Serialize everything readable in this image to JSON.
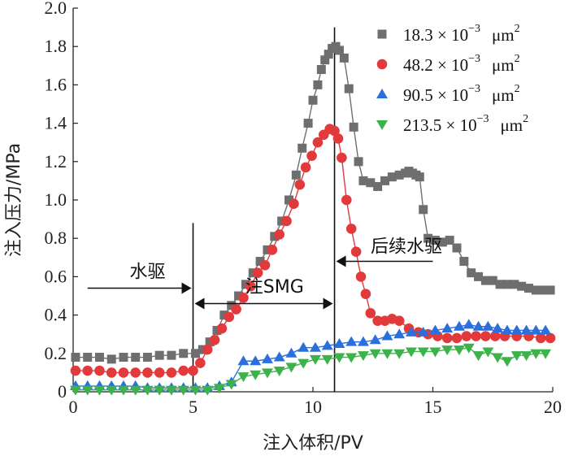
{
  "chart_data": {
    "type": "line",
    "xlabel": "注入体积/PV",
    "ylabel": "注入压力/MPa",
    "xlim": [
      0,
      20
    ],
    "ylim": [
      0,
      2.0
    ],
    "x_ticks": [
      "0",
      "5",
      "10",
      "15",
      "20"
    ],
    "y_ticks": [
      "0",
      "0.2",
      "0.4",
      "0.6",
      "0.8",
      "1.0",
      "1.2",
      "1.4",
      "1.6",
      "1.8",
      "2.0"
    ],
    "legend_position": "top-right",
    "series": [
      {
        "name": "18.3×10⁻³ μm²",
        "legend": {
          "base": "18.3 × 10",
          "exp": "−3",
          "unit": "μm",
          "unit_exp": "2"
        },
        "marker": "square",
        "color": "#6e6e6e",
        "x": [
          0.1,
          0.6,
          1.1,
          1.6,
          2.1,
          2.6,
          3.1,
          3.6,
          4.1,
          4.6,
          5.1,
          5.4,
          5.7,
          6.0,
          6.3,
          6.6,
          6.9,
          7.2,
          7.5,
          7.8,
          8.1,
          8.4,
          8.7,
          9.0,
          9.3,
          9.55,
          9.8,
          10.0,
          10.2,
          10.35,
          10.5,
          10.65,
          10.8,
          10.95,
          11.1,
          11.3,
          11.5,
          11.7,
          11.9,
          12.1,
          12.4,
          12.7,
          13.0,
          13.3,
          13.6,
          13.85,
          14.0,
          14.15,
          14.3,
          14.45,
          14.6,
          14.8,
          15.1,
          15.4,
          15.7,
          16.0,
          16.3,
          16.6,
          16.9,
          17.2,
          17.5,
          17.8,
          18.1,
          18.4,
          18.7,
          19.0,
          19.3,
          19.6,
          19.9
        ],
        "y": [
          0.18,
          0.18,
          0.18,
          0.17,
          0.18,
          0.18,
          0.18,
          0.19,
          0.19,
          0.2,
          0.2,
          0.22,
          0.26,
          0.32,
          0.4,
          0.45,
          0.5,
          0.56,
          0.62,
          0.68,
          0.74,
          0.81,
          0.89,
          1.0,
          1.13,
          1.27,
          1.4,
          1.52,
          1.6,
          1.68,
          1.73,
          1.76,
          1.79,
          1.8,
          1.78,
          1.74,
          1.58,
          1.38,
          1.2,
          1.1,
          1.09,
          1.07,
          1.1,
          1.12,
          1.13,
          1.14,
          1.15,
          1.14,
          1.13,
          1.12,
          0.95,
          0.8,
          0.79,
          0.78,
          0.79,
          0.75,
          0.68,
          0.62,
          0.6,
          0.58,
          0.58,
          0.56,
          0.56,
          0.56,
          0.55,
          0.54,
          0.53,
          0.53,
          0.53
        ]
      },
      {
        "name": "48.2×10⁻³ μm²",
        "legend": {
          "base": "48.2 × 10",
          "exp": "−3",
          "unit": "μm",
          "unit_exp": "2"
        },
        "marker": "circle",
        "color": "#e23a3a",
        "x": [
          0.1,
          0.6,
          1.1,
          1.6,
          2.1,
          2.6,
          3.1,
          3.6,
          4.1,
          4.6,
          5.0,
          5.3,
          5.6,
          5.9,
          6.2,
          6.5,
          6.8,
          7.1,
          7.4,
          7.7,
          8.0,
          8.3,
          8.6,
          8.9,
          9.2,
          9.45,
          9.7,
          9.95,
          10.2,
          10.45,
          10.7,
          10.9,
          11.05,
          11.2,
          11.4,
          11.6,
          11.8,
          12.0,
          12.2,
          12.4,
          12.7,
          13.0,
          13.3,
          13.6,
          14.0,
          14.4,
          14.8,
          15.2,
          15.6,
          16.0,
          16.4,
          16.8,
          17.2,
          17.6,
          18.0,
          18.5,
          19.0,
          19.5,
          19.9
        ],
        "y": [
          0.11,
          0.11,
          0.11,
          0.1,
          0.1,
          0.1,
          0.1,
          0.1,
          0.1,
          0.11,
          0.11,
          0.15,
          0.22,
          0.27,
          0.33,
          0.39,
          0.43,
          0.49,
          0.55,
          0.62,
          0.66,
          0.74,
          0.82,
          0.89,
          0.98,
          1.08,
          1.17,
          1.23,
          1.3,
          1.34,
          1.37,
          1.36,
          1.32,
          1.22,
          1.0,
          0.85,
          0.73,
          0.6,
          0.51,
          0.41,
          0.37,
          0.37,
          0.38,
          0.37,
          0.33,
          0.31,
          0.3,
          0.29,
          0.28,
          0.28,
          0.29,
          0.29,
          0.29,
          0.29,
          0.29,
          0.29,
          0.29,
          0.28,
          0.28
        ]
      },
      {
        "name": "90.5×10⁻³ μm²",
        "legend": {
          "base": "90.5 × 10",
          "exp": "−3",
          "unit": "μm",
          "unit_exp": "2"
        },
        "marker": "triangle-up",
        "color": "#2a6fdb",
        "x": [
          0.1,
          0.6,
          1.1,
          1.6,
          2.1,
          2.6,
          3.1,
          3.6,
          4.1,
          4.6,
          5.1,
          5.6,
          6.1,
          6.6,
          7.1,
          7.6,
          8.1,
          8.6,
          9.1,
          9.6,
          10.1,
          10.6,
          11.1,
          11.6,
          12.1,
          12.6,
          13.1,
          13.6,
          14.1,
          14.6,
          15.1,
          15.6,
          16.1,
          16.5,
          16.9,
          17.3,
          17.7,
          18.1,
          18.5,
          18.9,
          19.3,
          19.7
        ],
        "y": [
          0.03,
          0.03,
          0.03,
          0.03,
          0.03,
          0.03,
          0.02,
          0.02,
          0.02,
          0.02,
          0.02,
          0.02,
          0.03,
          0.05,
          0.16,
          0.16,
          0.17,
          0.18,
          0.2,
          0.23,
          0.23,
          0.24,
          0.25,
          0.26,
          0.26,
          0.27,
          0.29,
          0.3,
          0.31,
          0.31,
          0.32,
          0.33,
          0.34,
          0.35,
          0.34,
          0.34,
          0.33,
          0.32,
          0.32,
          0.32,
          0.32,
          0.32
        ]
      },
      {
        "name": "213.5×10⁻³ μm²",
        "legend": {
          "base": "213.5 × 10",
          "exp": "−3",
          "unit": "μm",
          "unit_exp": "2"
        },
        "marker": "triangle-down",
        "color": "#3db24a",
        "x": [
          0.1,
          0.6,
          1.1,
          1.6,
          2.1,
          2.6,
          3.1,
          3.6,
          4.1,
          4.6,
          5.1,
          5.6,
          6.1,
          6.6,
          7.1,
          7.6,
          8.1,
          8.6,
          9.1,
          9.6,
          10.1,
          10.6,
          11.1,
          11.6,
          12.1,
          12.6,
          13.1,
          13.6,
          14.1,
          14.6,
          15.1,
          15.6,
          16.1,
          16.5,
          16.9,
          17.3,
          17.7,
          18.1,
          18.5,
          18.9,
          19.3,
          19.7
        ],
        "y": [
          0.01,
          0.01,
          0.01,
          0.01,
          0.01,
          0.01,
          0.01,
          0.01,
          0.01,
          0.01,
          0.01,
          0.01,
          0.02,
          0.04,
          0.08,
          0.09,
          0.1,
          0.11,
          0.13,
          0.15,
          0.17,
          0.17,
          0.18,
          0.18,
          0.19,
          0.2,
          0.2,
          0.2,
          0.21,
          0.21,
          0.21,
          0.22,
          0.22,
          0.23,
          0.19,
          0.21,
          0.18,
          0.16,
          0.19,
          0.19,
          0.2,
          0.2
        ]
      }
    ],
    "annotations": [
      {
        "name": "water-drive",
        "text": "水驱",
        "x": 3.1,
        "y": 0.63
      },
      {
        "name": "smg-injection",
        "text": "注SMG",
        "x": 8.4,
        "y": 0.55
      },
      {
        "name": "subsequent-water-drive",
        "text": "后续水驱",
        "x": 13.9,
        "y": 0.76
      }
    ],
    "vlines": [
      5.0,
      10.9
    ]
  }
}
